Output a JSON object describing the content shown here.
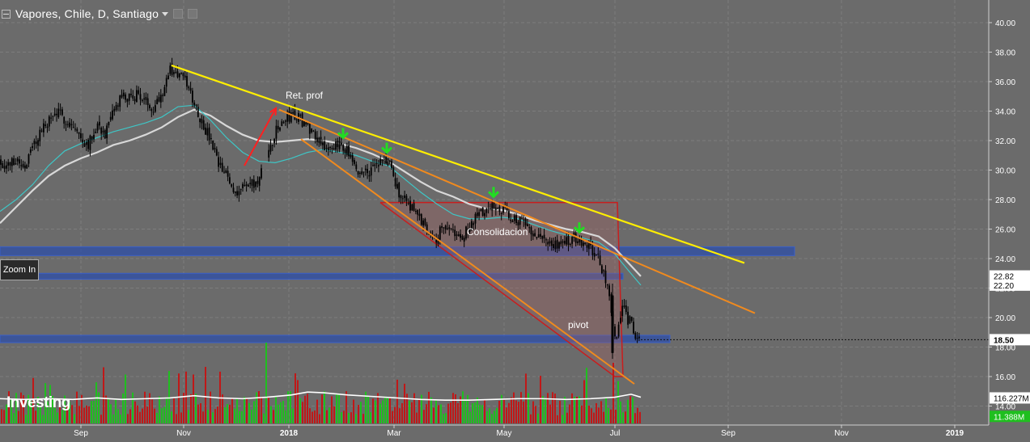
{
  "header": {
    "title": "Vapores, Chile, D, Santiago"
  },
  "toolbar": {
    "zoom_in_label": "Zoom In"
  },
  "logo_text": "Investing",
  "colors": {
    "background": "#6b6b6b",
    "grid": "#7d7d7d",
    "candle": "#000000",
    "volume_up": "#1fbf1f",
    "volume_down": "#c01818",
    "sma_fast": "#3ec6c6",
    "sma_slow": "#d8d8d8",
    "trend_yellow": "#ffee00",
    "trend_orange": "#f08a1e",
    "zone_blue": "#2c4ea8",
    "box_red": "#c81e1e",
    "arrow_green": "#22dd22",
    "arrow_red": "#ff2020"
  },
  "chart_data": {
    "type": "candlestick",
    "x_axis": {
      "tick_labels": [
        "Sep",
        "Nov",
        "2018",
        "Mar",
        "May",
        "Jul",
        "Sep",
        "Nov",
        "2019"
      ],
      "bold_ticks": [
        "2018",
        "2019"
      ]
    },
    "y_axis": {
      "tick_labels": [
        "14.00",
        "16.00",
        "18.00",
        "20.00",
        "22.00",
        "24.00",
        "26.00",
        "28.00",
        "30.00",
        "32.00",
        "34.00",
        "36.00",
        "38.00",
        "40.00"
      ],
      "ylim": [
        13,
        41
      ]
    },
    "grid": true,
    "price_tags": [
      {
        "label": "22.82",
        "value": 22.82,
        "style": "light"
      },
      {
        "label": "22.20",
        "value": 22.2,
        "style": "light"
      },
      {
        "label": "18.50",
        "value": 18.5,
        "style": "current"
      },
      {
        "label": "116.227M",
        "value": 14.55,
        "style": "light"
      },
      {
        "label": "11.388M",
        "value": 13.3,
        "style": "green"
      }
    ],
    "price_path": [
      [
        0,
        30.6
      ],
      [
        10,
        30.3
      ],
      [
        20,
        30.8
      ],
      [
        30,
        30.2
      ],
      [
        40,
        31.5
      ],
      [
        50,
        32.6
      ],
      [
        60,
        33.3
      ],
      [
        70,
        33.9
      ],
      [
        80,
        33.5
      ],
      [
        90,
        33.0
      ],
      [
        100,
        32.1
      ],
      [
        110,
        31.8
      ],
      [
        120,
        33.2
      ],
      [
        130,
        32.4
      ],
      [
        140,
        33.8
      ],
      [
        150,
        35.0
      ],
      [
        160,
        34.8
      ],
      [
        170,
        35.2
      ],
      [
        180,
        34.6
      ],
      [
        190,
        34.3
      ],
      [
        200,
        35.3
      ],
      [
        210,
        36.8
      ],
      [
        220,
        36.5
      ],
      [
        230,
        36.0
      ],
      [
        240,
        34.6
      ],
      [
        250,
        33.2
      ],
      [
        260,
        32.0
      ],
      [
        270,
        30.3
      ],
      [
        280,
        29.6
      ],
      [
        290,
        28.5
      ],
      [
        300,
        28.9
      ],
      [
        310,
        29.0
      ],
      [
        320,
        29.2
      ],
      [
        330,
        31.0
      ],
      [
        340,
        32.5
      ],
      [
        350,
        33.3
      ],
      [
        360,
        33.8
      ],
      [
        370,
        33.5
      ],
      [
        380,
        33.0
      ],
      [
        390,
        32.4
      ],
      [
        400,
        31.8
      ],
      [
        410,
        31.1
      ],
      [
        420,
        32.0
      ],
      [
        430,
        31.2
      ],
      [
        440,
        29.8
      ],
      [
        450,
        29.9
      ],
      [
        460,
        30.0
      ],
      [
        470,
        30.5
      ],
      [
        480,
        30.7
      ],
      [
        490,
        28.8
      ],
      [
        500,
        28.0
      ],
      [
        510,
        27.5
      ],
      [
        520,
        26.6
      ],
      [
        530,
        26.0
      ],
      [
        540,
        25.4
      ],
      [
        550,
        26.4
      ],
      [
        560,
        25.7
      ],
      [
        570,
        25.3
      ],
      [
        580,
        26.1
      ],
      [
        590,
        26.9
      ],
      [
        600,
        27.3
      ],
      [
        610,
        27.6
      ],
      [
        620,
        27.4
      ],
      [
        630,
        26.9
      ],
      [
        640,
        26.6
      ],
      [
        650,
        26.2
      ],
      [
        660,
        25.9
      ],
      [
        670,
        25.4
      ],
      [
        680,
        25.0
      ],
      [
        690,
        24.8
      ],
      [
        700,
        25.1
      ],
      [
        710,
        25.5
      ],
      [
        720,
        25.2
      ],
      [
        730,
        24.8
      ],
      [
        740,
        23.9
      ],
      [
        750,
        22.3
      ],
      [
        755,
        21.0
      ],
      [
        757,
        19.4
      ],
      [
        760,
        18.4
      ],
      [
        765,
        19.6
      ],
      [
        770,
        20.6
      ],
      [
        775,
        20.0
      ],
      [
        780,
        19.6
      ],
      [
        785,
        18.9
      ],
      [
        790,
        18.5
      ]
    ],
    "sma_fast": [
      [
        0,
        27.2
      ],
      [
        20,
        28.0
      ],
      [
        40,
        29.0
      ],
      [
        60,
        30.3
      ],
      [
        80,
        31.3
      ],
      [
        100,
        31.8
      ],
      [
        120,
        32.2
      ],
      [
        140,
        32.6
      ],
      [
        160,
        32.9
      ],
      [
        180,
        33.2
      ],
      [
        200,
        33.6
      ],
      [
        220,
        34.3
      ],
      [
        240,
        34.4
      ],
      [
        260,
        33.4
      ],
      [
        280,
        32.2
      ],
      [
        300,
        31.2
      ],
      [
        320,
        30.6
      ],
      [
        340,
        30.5
      ],
      [
        360,
        30.8
      ],
      [
        380,
        31.2
      ],
      [
        400,
        31.4
      ],
      [
        420,
        31.2
      ],
      [
        440,
        31.0
      ],
      [
        460,
        30.6
      ],
      [
        480,
        30.3
      ],
      [
        500,
        29.4
      ],
      [
        520,
        28.5
      ],
      [
        540,
        27.7
      ],
      [
        560,
        27.0
      ],
      [
        580,
        26.7
      ],
      [
        600,
        26.7
      ],
      [
        620,
        26.8
      ],
      [
        640,
        26.7
      ],
      [
        660,
        26.3
      ],
      [
        680,
        25.9
      ],
      [
        700,
        25.6
      ],
      [
        720,
        25.4
      ],
      [
        740,
        25.1
      ],
      [
        760,
        24.3
      ],
      [
        775,
        23.3
      ],
      [
        792,
        22.2
      ]
    ],
    "sma_slow": [
      [
        0,
        26.4
      ],
      [
        20,
        27.5
      ],
      [
        40,
        28.6
      ],
      [
        60,
        29.6
      ],
      [
        80,
        30.3
      ],
      [
        100,
        30.8
      ],
      [
        120,
        31.2
      ],
      [
        140,
        31.7
      ],
      [
        160,
        32.0
      ],
      [
        180,
        32.4
      ],
      [
        200,
        32.9
      ],
      [
        220,
        33.6
      ],
      [
        240,
        34.1
      ],
      [
        260,
        33.7
      ],
      [
        280,
        33.0
      ],
      [
        300,
        32.4
      ],
      [
        320,
        32.0
      ],
      [
        340,
        31.9
      ],
      [
        360,
        32.0
      ],
      [
        380,
        32.1
      ],
      [
        400,
        32.0
      ],
      [
        420,
        31.8
      ],
      [
        440,
        31.5
      ],
      [
        460,
        31.1
      ],
      [
        480,
        30.6
      ],
      [
        500,
        29.9
      ],
      [
        520,
        29.2
      ],
      [
        540,
        28.6
      ],
      [
        560,
        28.2
      ],
      [
        580,
        27.7
      ],
      [
        600,
        27.4
      ],
      [
        620,
        27.3
      ],
      [
        640,
        27.0
      ],
      [
        660,
        26.6
      ],
      [
        680,
        26.3
      ],
      [
        700,
        26.0
      ],
      [
        720,
        25.8
      ],
      [
        740,
        25.5
      ],
      [
        760,
        24.7
      ],
      [
        775,
        23.8
      ],
      [
        792,
        22.8
      ]
    ],
    "volume_average": [
      [
        0,
        14.5
      ],
      [
        30,
        14.45
      ],
      [
        60,
        14.5
      ],
      [
        90,
        14.45
      ],
      [
        120,
        14.55
      ],
      [
        150,
        14.45
      ],
      [
        180,
        14.5
      ],
      [
        210,
        14.55
      ],
      [
        240,
        14.7
      ],
      [
        270,
        14.55
      ],
      [
        300,
        14.5
      ],
      [
        330,
        14.6
      ],
      [
        360,
        14.75
      ],
      [
        380,
        14.95
      ],
      [
        400,
        14.9
      ],
      [
        430,
        14.75
      ],
      [
        460,
        14.65
      ],
      [
        490,
        14.55
      ],
      [
        520,
        14.45
      ],
      [
        550,
        14.4
      ],
      [
        580,
        14.4
      ],
      [
        610,
        14.45
      ],
      [
        640,
        14.5
      ],
      [
        670,
        14.5
      ],
      [
        700,
        14.45
      ],
      [
        730,
        14.5
      ],
      [
        760,
        14.6
      ],
      [
        780,
        14.8
      ],
      [
        792,
        14.6
      ]
    ],
    "annotations": [
      {
        "text": "Ret. prof",
        "x": 353,
        "y": 34.85
      },
      {
        "text": "Consolidacion",
        "x": 577,
        "y": 25.6
      },
      {
        "text": "pivot",
        "x": 702,
        "y": 19.3
      }
    ],
    "trendlines": [
      {
        "color": "yellow",
        "from": [
          212,
          37.1
        ],
        "to": [
          920,
          23.7
        ]
      },
      {
        "color": "orange",
        "from": [
          345,
          34.1
        ],
        "to": [
          933,
          20.3
        ]
      },
      {
        "color": "orange",
        "from": [
          372,
          32.1
        ],
        "to": [
          784,
          15.5
        ]
      }
    ],
    "zones": [
      {
        "from_x": 0,
        "to_x": 982,
        "low": 24.2,
        "high": 24.8
      },
      {
        "from_x": 0,
        "to_x": 770,
        "low": 22.6,
        "high": 23.0
      },
      {
        "from_x": 0,
        "to_x": 828,
        "low": 18.3,
        "high": 18.8
      }
    ],
    "red_box": [
      [
        470,
        27.8
      ],
      [
        763,
        27.8
      ],
      [
        770,
        16.0
      ],
      [
        760,
        16.0
      ],
      [
        470,
        27.8
      ]
    ],
    "green_arrows": [
      {
        "x": 424,
        "y": 32.2
      },
      {
        "x": 478,
        "y": 31.2
      },
      {
        "x": 610,
        "y": 28.2
      },
      {
        "x": 716,
        "y": 25.8
      }
    ],
    "red_arrow": {
      "from": [
        302,
        30.3
      ],
      "to": [
        341,
        34.2
      ]
    },
    "current_price_line": 18.5
  }
}
